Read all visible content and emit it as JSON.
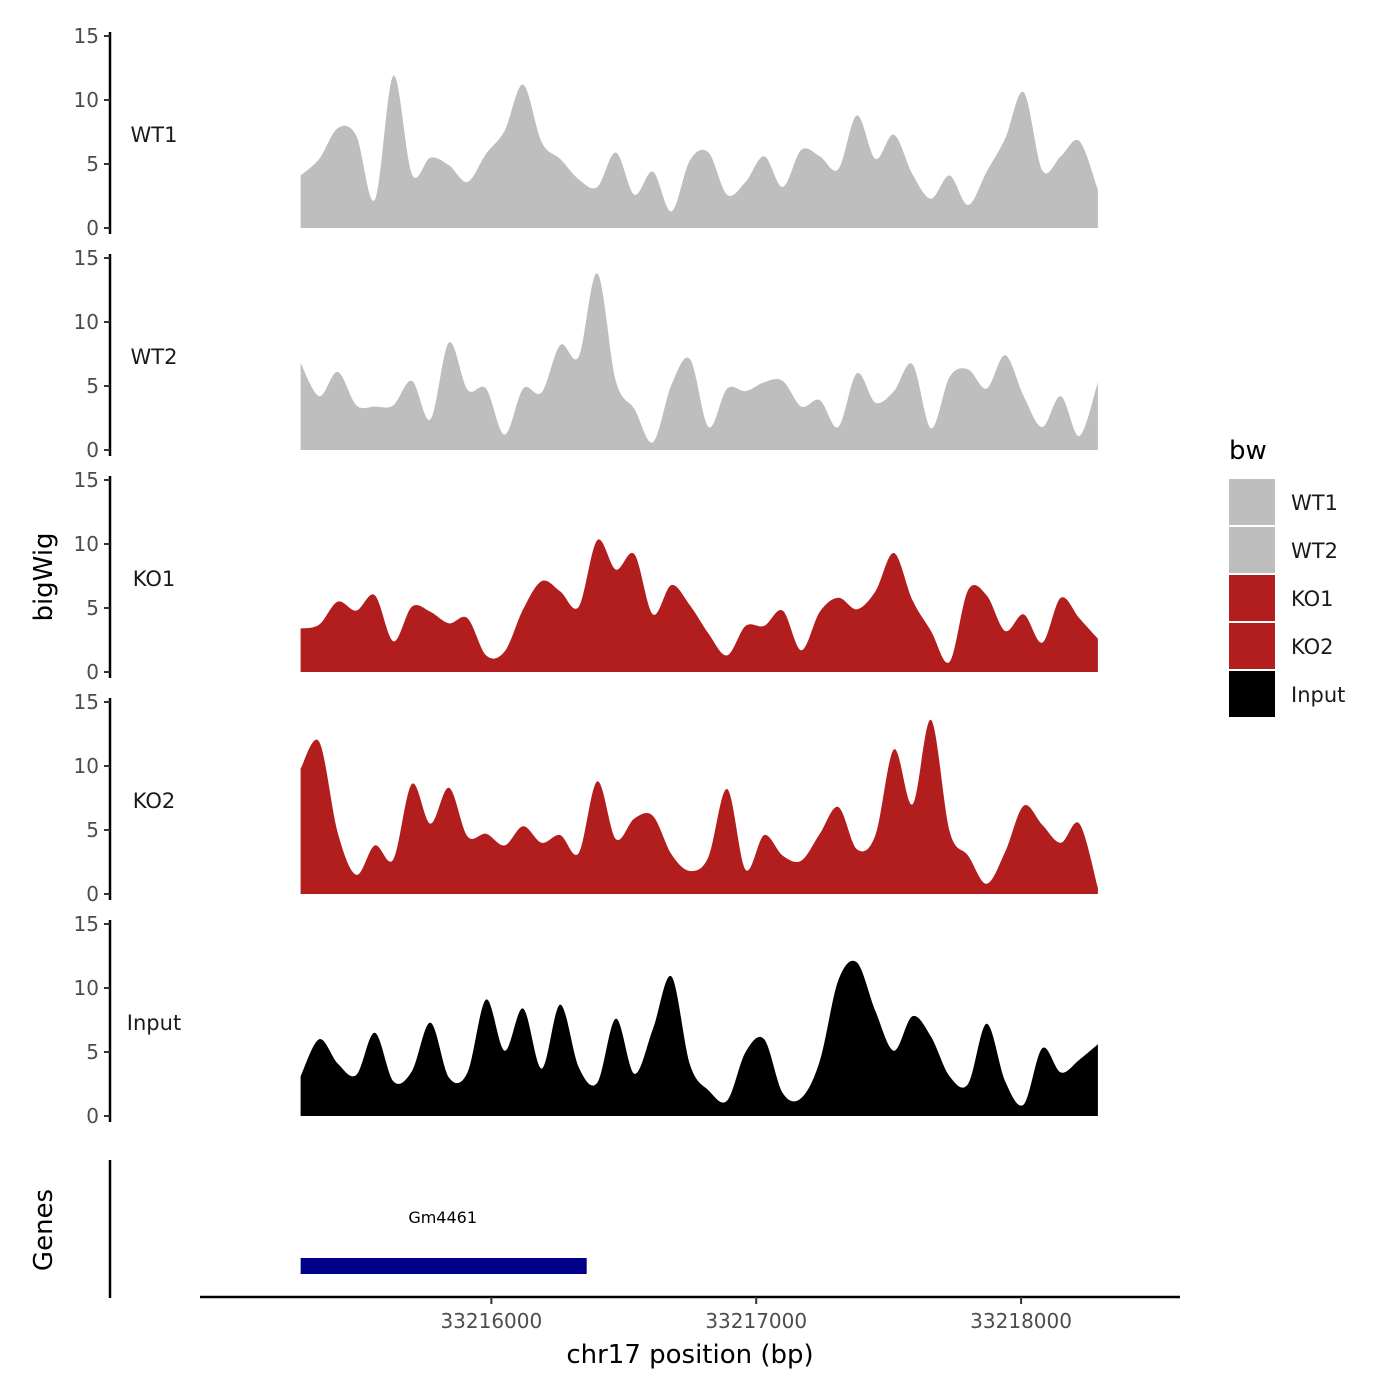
{
  "chart_data": {
    "type": "area",
    "title": "",
    "ylabel": "bigWig",
    "genes_label": "Genes",
    "xlabel": "chr17 position (bp)",
    "xlim": [
      33214900,
      33218600
    ],
    "ylim": [
      0,
      15
    ],
    "x_ticks": [
      33216000,
      33217000,
      33218000
    ],
    "x_tick_labels": [
      "33216000",
      "33217000",
      "33218000"
    ],
    "y_ticks": [
      0,
      5,
      10,
      15
    ],
    "y_tick_labels": [
      "0",
      "5",
      "10",
      "15"
    ],
    "grid": false,
    "legend": {
      "title": "bw",
      "position": "right",
      "entries": [
        {
          "label": "WT1",
          "color": "#bebebe"
        },
        {
          "label": "WT2",
          "color": "#bebebe"
        },
        {
          "label": "KO1",
          "color": "#b21e1e"
        },
        {
          "label": "KO2",
          "color": "#b21e1e"
        },
        {
          "label": "Input",
          "color": "#000000"
        }
      ]
    },
    "x": [
      33215280,
      33215350,
      33215420,
      33215490,
      33215560,
      33215630,
      33215700,
      33215770,
      33215840,
      33215910,
      33215980,
      33216050,
      33216120,
      33216190,
      33216260,
      33216330,
      33216400,
      33216470,
      33216540,
      33216610,
      33216680,
      33216750,
      33216820,
      33216890,
      33216960,
      33217030,
      33217100,
      33217170,
      33217240,
      33217310,
      33217380,
      33217450,
      33217520,
      33217590,
      33217660,
      33217730,
      33217800,
      33217870,
      33217940,
      33218010,
      33218080,
      33218150,
      33218220,
      33218290
    ],
    "series": [
      {
        "name": "WT1",
        "color": "#bebebe",
        "values": [
          4.1,
          5.4,
          7.8,
          7.2,
          2.2,
          11.9,
          4.2,
          5.5,
          4.9,
          3.6,
          5.8,
          7.6,
          11.2,
          6.7,
          5.4,
          3.8,
          3.2,
          5.9,
          2.6,
          4.4,
          1.3,
          5.3,
          5.9,
          2.6,
          3.6,
          5.6,
          3.2,
          6.1,
          5.6,
          4.6,
          8.8,
          5.4,
          7.3,
          4.2,
          2.3,
          4.1,
          1.8,
          4.4,
          7.0,
          10.6,
          4.5,
          5.6,
          6.8,
          3.0
        ]
      },
      {
        "name": "WT2",
        "color": "#bebebe",
        "values": [
          6.8,
          4.2,
          6.1,
          3.5,
          3.4,
          3.5,
          5.4,
          2.4,
          8.4,
          4.7,
          4.8,
          1.2,
          4.8,
          4.5,
          8.2,
          7.3,
          13.8,
          5.4,
          3.2,
          0.6,
          5.1,
          7.1,
          1.8,
          4.8,
          4.6,
          5.3,
          5.4,
          3.4,
          3.9,
          1.8,
          6.0,
          3.7,
          4.6,
          6.7,
          1.7,
          5.7,
          6.3,
          4.8,
          7.4,
          4.2,
          1.8,
          4.2,
          1.1,
          5.3
        ]
      },
      {
        "name": "KO1",
        "color": "#b21e1e",
        "values": [
          3.4,
          3.7,
          5.5,
          4.8,
          6.0,
          2.4,
          5.1,
          4.7,
          3.8,
          4.2,
          1.3,
          1.6,
          4.9,
          7.1,
          6.3,
          5.1,
          10.3,
          8.0,
          9.2,
          4.5,
          6.8,
          5.2,
          3.0,
          1.3,
          3.6,
          3.6,
          4.8,
          1.7,
          4.7,
          5.8,
          4.9,
          6.3,
          9.3,
          5.6,
          3.2,
          0.8,
          6.4,
          6.0,
          3.2,
          4.5,
          2.3,
          5.8,
          4.2,
          2.6
        ]
      },
      {
        "name": "KO2",
        "color": "#b21e1e",
        "values": [
          9.8,
          11.9,
          4.8,
          1.5,
          3.8,
          2.7,
          8.6,
          5.5,
          8.3,
          4.5,
          4.7,
          3.8,
          5.3,
          4.0,
          4.6,
          3.2,
          8.8,
          4.3,
          5.9,
          6.1,
          3.1,
          1.8,
          2.9,
          8.2,
          1.9,
          4.6,
          3.0,
          2.6,
          4.7,
          6.8,
          3.5,
          4.6,
          11.3,
          7.0,
          13.6,
          4.9,
          3.0,
          0.8,
          3.3,
          6.9,
          5.4,
          4.0,
          5.5,
          0.5
        ]
      },
      {
        "name": "Input",
        "color": "#000000",
        "values": [
          3.1,
          6.0,
          4.1,
          3.2,
          6.5,
          2.7,
          3.5,
          7.3,
          3.0,
          3.4,
          9.1,
          5.1,
          8.4,
          3.7,
          8.7,
          3.8,
          2.6,
          7.6,
          3.3,
          6.8,
          10.9,
          4.0,
          2.0,
          1.2,
          5.0,
          6.0,
          1.8,
          1.4,
          4.3,
          10.6,
          12.0,
          8.2,
          5.1,
          7.8,
          6.2,
          3.1,
          2.5,
          7.2,
          2.7,
          0.9,
          5.3,
          3.4,
          4.4,
          5.6
        ]
      }
    ],
    "genes": [
      {
        "name": "Gm4461",
        "start": 33215280,
        "end": 33216360,
        "color": "#00008b"
      }
    ]
  }
}
